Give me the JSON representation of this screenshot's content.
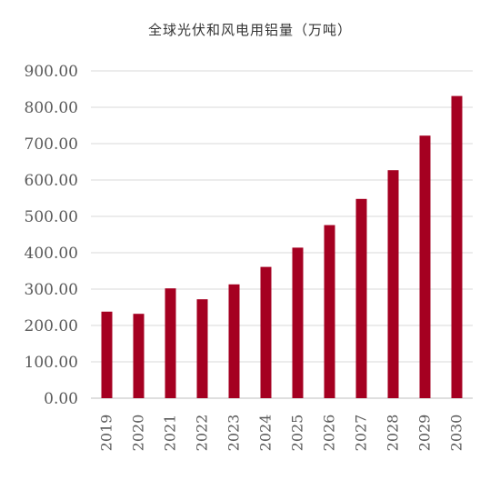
{
  "chart_data": {
    "type": "bar",
    "title": "全球光伏和风电用铝量（万吨）",
    "categories": [
      "2019",
      "2020",
      "2021",
      "2022",
      "2023",
      "2024",
      "2025",
      "2026",
      "2027",
      "2028",
      "2029",
      "2030"
    ],
    "values": [
      238,
      232,
      302,
      272,
      313,
      361,
      414,
      476,
      548,
      627,
      722,
      831
    ],
    "ylim": [
      0,
      900
    ],
    "yticks": [
      0,
      100,
      200,
      300,
      400,
      500,
      600,
      700,
      800,
      900
    ],
    "ytick_labels": [
      "0.00",
      "100.00",
      "200.00",
      "300.00",
      "400.00",
      "500.00",
      "600.00",
      "700.00",
      "800.00",
      "900.00"
    ],
    "bar_color": "#A50021",
    "grid": true,
    "legend": "none"
  }
}
